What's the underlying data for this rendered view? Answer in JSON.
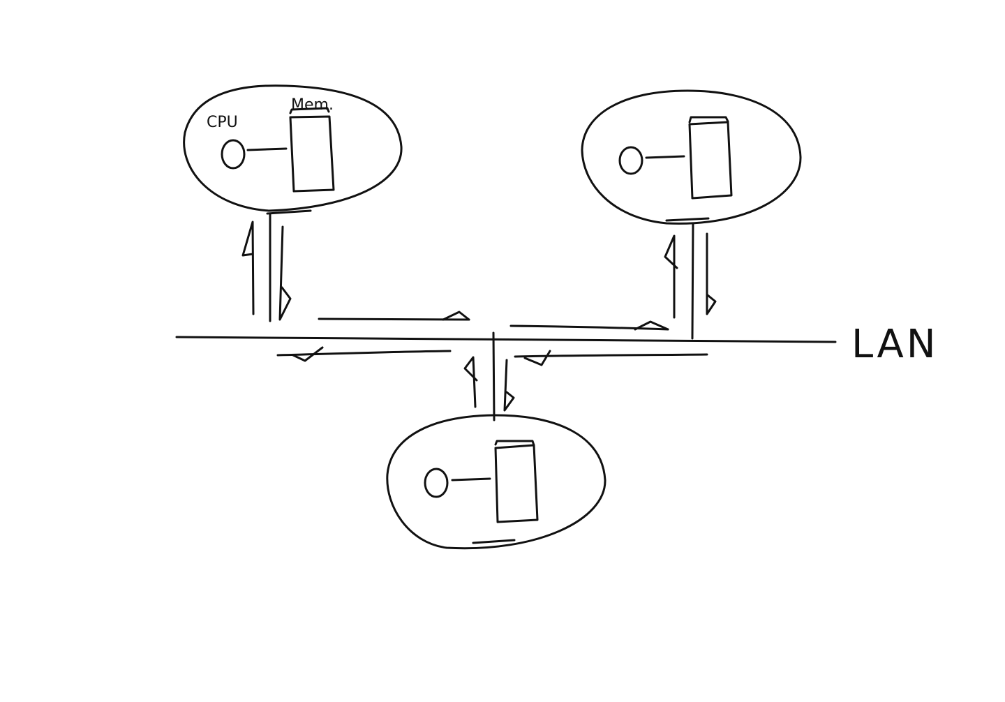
{
  "labels": {
    "cpu": "CPU",
    "mem": "Mem.",
    "lan": "LAN"
  },
  "nodes": [
    {
      "id": "node-top-left",
      "has_labels": true
    },
    {
      "id": "node-top-right",
      "has_labels": false
    },
    {
      "id": "node-bottom",
      "has_labels": false
    }
  ],
  "colors": {
    "ink": "#111111",
    "background": "#ffffff"
  }
}
